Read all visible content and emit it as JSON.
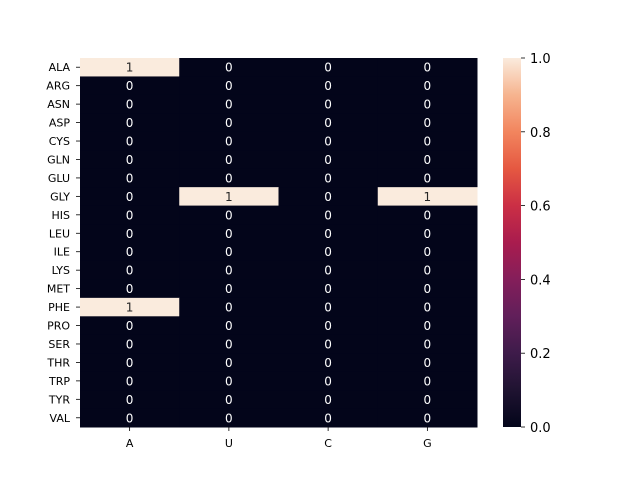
{
  "chart_data": {
    "type": "heatmap",
    "title": "",
    "xlabel": "",
    "ylabel": "",
    "x_categories": [
      "A",
      "U",
      "C",
      "G"
    ],
    "y_categories": [
      "ALA",
      "ARG",
      "ASN",
      "ASP",
      "CYS",
      "GLN",
      "GLU",
      "GLY",
      "HIS",
      "LEU",
      "ILE",
      "LYS",
      "MET",
      "PHE",
      "PRO",
      "SER",
      "THR",
      "TRP",
      "TYR",
      "VAL"
    ],
    "values": [
      [
        1,
        0,
        0,
        0
      ],
      [
        0,
        0,
        0,
        0
      ],
      [
        0,
        0,
        0,
        0
      ],
      [
        0,
        0,
        0,
        0
      ],
      [
        0,
        0,
        0,
        0
      ],
      [
        0,
        0,
        0,
        0
      ],
      [
        0,
        0,
        0,
        0
      ],
      [
        0,
        1,
        0,
        1
      ],
      [
        0,
        0,
        0,
        0
      ],
      [
        0,
        0,
        0,
        0
      ],
      [
        0,
        0,
        0,
        0
      ],
      [
        0,
        0,
        0,
        0
      ],
      [
        0,
        0,
        0,
        0
      ],
      [
        1,
        0,
        0,
        0
      ],
      [
        0,
        0,
        0,
        0
      ],
      [
        0,
        0,
        0,
        0
      ],
      [
        0,
        0,
        0,
        0
      ],
      [
        0,
        0,
        0,
        0
      ],
      [
        0,
        0,
        0,
        0
      ],
      [
        0,
        0,
        0,
        0
      ]
    ],
    "annotated": true,
    "colorbar": {
      "range": [
        0.0,
        1.0
      ],
      "ticks": [
        "0.0",
        "0.2",
        "0.4",
        "0.6",
        "0.8",
        "1.0"
      ],
      "colormap": "rocket",
      "low_color": "#03051a",
      "high_color": "#faebdd"
    },
    "grid": false,
    "legend": "colorbar-right"
  }
}
